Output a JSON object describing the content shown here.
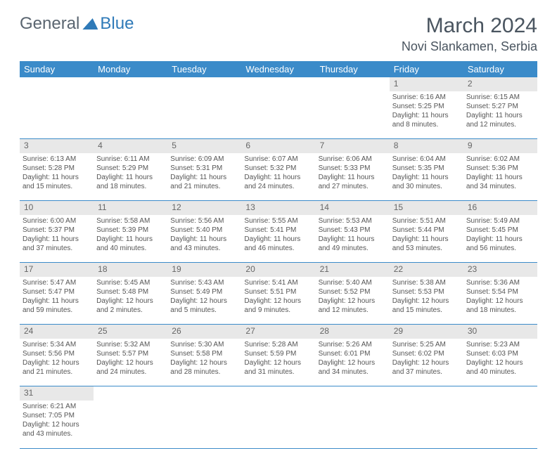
{
  "logo": {
    "part1": "General",
    "part2": "Blue"
  },
  "header": {
    "month_title": "March 2024",
    "location": "Novi Slankamen, Serbia"
  },
  "colors": {
    "header_bg": "#3b8bc9",
    "daynum_bg": "#e8e8e8",
    "rule": "#3b8bc9"
  },
  "day_names": [
    "Sunday",
    "Monday",
    "Tuesday",
    "Wednesday",
    "Thursday",
    "Friday",
    "Saturday"
  ],
  "weeks": [
    {
      "nums": [
        "",
        "",
        "",
        "",
        "",
        "1",
        "2"
      ],
      "cells": [
        null,
        null,
        null,
        null,
        null,
        {
          "sunrise": "Sunrise: 6:16 AM",
          "sunset": "Sunset: 5:25 PM",
          "day1": "Daylight: 11 hours",
          "day2": "and 8 minutes."
        },
        {
          "sunrise": "Sunrise: 6:15 AM",
          "sunset": "Sunset: 5:27 PM",
          "day1": "Daylight: 11 hours",
          "day2": "and 12 minutes."
        }
      ]
    },
    {
      "nums": [
        "3",
        "4",
        "5",
        "6",
        "7",
        "8",
        "9"
      ],
      "cells": [
        {
          "sunrise": "Sunrise: 6:13 AM",
          "sunset": "Sunset: 5:28 PM",
          "day1": "Daylight: 11 hours",
          "day2": "and 15 minutes."
        },
        {
          "sunrise": "Sunrise: 6:11 AM",
          "sunset": "Sunset: 5:29 PM",
          "day1": "Daylight: 11 hours",
          "day2": "and 18 minutes."
        },
        {
          "sunrise": "Sunrise: 6:09 AM",
          "sunset": "Sunset: 5:31 PM",
          "day1": "Daylight: 11 hours",
          "day2": "and 21 minutes."
        },
        {
          "sunrise": "Sunrise: 6:07 AM",
          "sunset": "Sunset: 5:32 PM",
          "day1": "Daylight: 11 hours",
          "day2": "and 24 minutes."
        },
        {
          "sunrise": "Sunrise: 6:06 AM",
          "sunset": "Sunset: 5:33 PM",
          "day1": "Daylight: 11 hours",
          "day2": "and 27 minutes."
        },
        {
          "sunrise": "Sunrise: 6:04 AM",
          "sunset": "Sunset: 5:35 PM",
          "day1": "Daylight: 11 hours",
          "day2": "and 30 minutes."
        },
        {
          "sunrise": "Sunrise: 6:02 AM",
          "sunset": "Sunset: 5:36 PM",
          "day1": "Daylight: 11 hours",
          "day2": "and 34 minutes."
        }
      ]
    },
    {
      "nums": [
        "10",
        "11",
        "12",
        "13",
        "14",
        "15",
        "16"
      ],
      "cells": [
        {
          "sunrise": "Sunrise: 6:00 AM",
          "sunset": "Sunset: 5:37 PM",
          "day1": "Daylight: 11 hours",
          "day2": "and 37 minutes."
        },
        {
          "sunrise": "Sunrise: 5:58 AM",
          "sunset": "Sunset: 5:39 PM",
          "day1": "Daylight: 11 hours",
          "day2": "and 40 minutes."
        },
        {
          "sunrise": "Sunrise: 5:56 AM",
          "sunset": "Sunset: 5:40 PM",
          "day1": "Daylight: 11 hours",
          "day2": "and 43 minutes."
        },
        {
          "sunrise": "Sunrise: 5:55 AM",
          "sunset": "Sunset: 5:41 PM",
          "day1": "Daylight: 11 hours",
          "day2": "and 46 minutes."
        },
        {
          "sunrise": "Sunrise: 5:53 AM",
          "sunset": "Sunset: 5:43 PM",
          "day1": "Daylight: 11 hours",
          "day2": "and 49 minutes."
        },
        {
          "sunrise": "Sunrise: 5:51 AM",
          "sunset": "Sunset: 5:44 PM",
          "day1": "Daylight: 11 hours",
          "day2": "and 53 minutes."
        },
        {
          "sunrise": "Sunrise: 5:49 AM",
          "sunset": "Sunset: 5:45 PM",
          "day1": "Daylight: 11 hours",
          "day2": "and 56 minutes."
        }
      ]
    },
    {
      "nums": [
        "17",
        "18",
        "19",
        "20",
        "21",
        "22",
        "23"
      ],
      "cells": [
        {
          "sunrise": "Sunrise: 5:47 AM",
          "sunset": "Sunset: 5:47 PM",
          "day1": "Daylight: 11 hours",
          "day2": "and 59 minutes."
        },
        {
          "sunrise": "Sunrise: 5:45 AM",
          "sunset": "Sunset: 5:48 PM",
          "day1": "Daylight: 12 hours",
          "day2": "and 2 minutes."
        },
        {
          "sunrise": "Sunrise: 5:43 AM",
          "sunset": "Sunset: 5:49 PM",
          "day1": "Daylight: 12 hours",
          "day2": "and 5 minutes."
        },
        {
          "sunrise": "Sunrise: 5:41 AM",
          "sunset": "Sunset: 5:51 PM",
          "day1": "Daylight: 12 hours",
          "day2": "and 9 minutes."
        },
        {
          "sunrise": "Sunrise: 5:40 AM",
          "sunset": "Sunset: 5:52 PM",
          "day1": "Daylight: 12 hours",
          "day2": "and 12 minutes."
        },
        {
          "sunrise": "Sunrise: 5:38 AM",
          "sunset": "Sunset: 5:53 PM",
          "day1": "Daylight: 12 hours",
          "day2": "and 15 minutes."
        },
        {
          "sunrise": "Sunrise: 5:36 AM",
          "sunset": "Sunset: 5:54 PM",
          "day1": "Daylight: 12 hours",
          "day2": "and 18 minutes."
        }
      ]
    },
    {
      "nums": [
        "24",
        "25",
        "26",
        "27",
        "28",
        "29",
        "30"
      ],
      "cells": [
        {
          "sunrise": "Sunrise: 5:34 AM",
          "sunset": "Sunset: 5:56 PM",
          "day1": "Daylight: 12 hours",
          "day2": "and 21 minutes."
        },
        {
          "sunrise": "Sunrise: 5:32 AM",
          "sunset": "Sunset: 5:57 PM",
          "day1": "Daylight: 12 hours",
          "day2": "and 24 minutes."
        },
        {
          "sunrise": "Sunrise: 5:30 AM",
          "sunset": "Sunset: 5:58 PM",
          "day1": "Daylight: 12 hours",
          "day2": "and 28 minutes."
        },
        {
          "sunrise": "Sunrise: 5:28 AM",
          "sunset": "Sunset: 5:59 PM",
          "day1": "Daylight: 12 hours",
          "day2": "and 31 minutes."
        },
        {
          "sunrise": "Sunrise: 5:26 AM",
          "sunset": "Sunset: 6:01 PM",
          "day1": "Daylight: 12 hours",
          "day2": "and 34 minutes."
        },
        {
          "sunrise": "Sunrise: 5:25 AM",
          "sunset": "Sunset: 6:02 PM",
          "day1": "Daylight: 12 hours",
          "day2": "and 37 minutes."
        },
        {
          "sunrise": "Sunrise: 5:23 AM",
          "sunset": "Sunset: 6:03 PM",
          "day1": "Daylight: 12 hours",
          "day2": "and 40 minutes."
        }
      ]
    },
    {
      "nums": [
        "31",
        "",
        "",
        "",
        "",
        "",
        ""
      ],
      "cells": [
        {
          "sunrise": "Sunrise: 6:21 AM",
          "sunset": "Sunset: 7:05 PM",
          "day1": "Daylight: 12 hours",
          "day2": "and 43 minutes."
        },
        null,
        null,
        null,
        null,
        null,
        null
      ]
    }
  ]
}
